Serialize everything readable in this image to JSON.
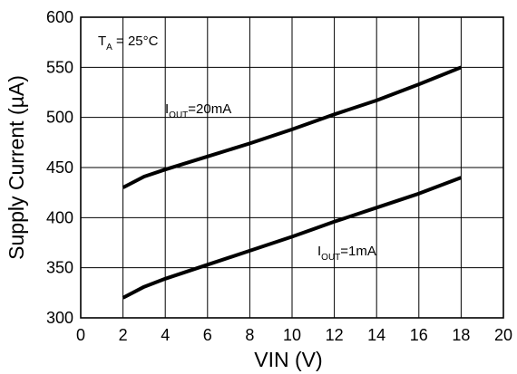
{
  "chart_data": {
    "type": "line",
    "title": "",
    "xlabel": "VIN (V)",
    "ylabel": "Supply Current (µA)",
    "xlim": [
      0,
      20
    ],
    "ylim": [
      300,
      600
    ],
    "xticks": [
      0,
      2,
      4,
      6,
      8,
      10,
      12,
      14,
      16,
      18,
      20
    ],
    "yticks": [
      300,
      350,
      400,
      450,
      500,
      550,
      600
    ],
    "grid": true,
    "condition": {
      "main": "T",
      "sub": "A",
      "rest": " = 25°C"
    },
    "series": [
      {
        "name": "IOUT=20mA",
        "label_parts": {
          "main": "I",
          "sub": "OUT",
          "rest": "=20mA"
        },
        "x": [
          2,
          3,
          4,
          6,
          8,
          10,
          12,
          14,
          16,
          18
        ],
        "y": [
          430,
          441,
          448,
          461,
          474,
          488,
          503,
          517,
          533,
          550
        ]
      },
      {
        "name": "IOUT=1mA",
        "label_parts": {
          "main": "I",
          "sub": "OUT",
          "rest": "=1mA"
        },
        "x": [
          2,
          3,
          4,
          6,
          8,
          10,
          12,
          14,
          16,
          18
        ],
        "y": [
          320,
          331,
          339,
          353,
          367,
          381,
          396,
          410,
          424,
          440
        ]
      }
    ]
  }
}
